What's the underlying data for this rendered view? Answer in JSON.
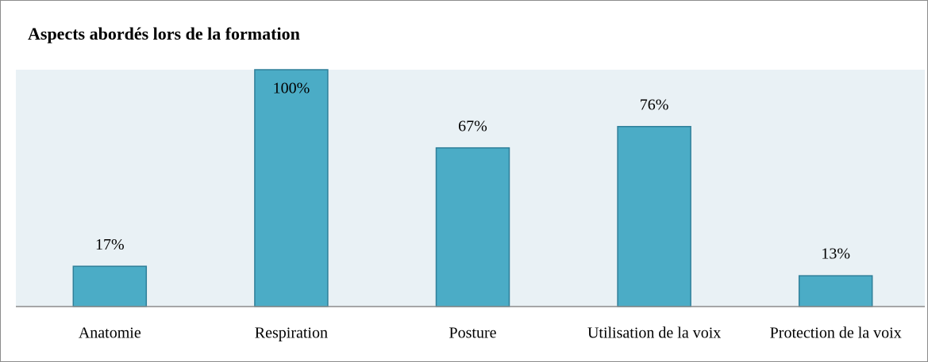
{
  "chart_data": {
    "type": "bar",
    "title": "Aspects abordés lors de la formation",
    "categories": [
      "Anatomie",
      "Respiration",
      "Posture",
      "Utilisation de la voix",
      "Protection de la voix"
    ],
    "values": [
      17,
      100,
      67,
      76,
      13
    ],
    "value_labels": [
      "17%",
      "100%",
      "67%",
      "76%",
      "13%"
    ],
    "color": "#4bacc6",
    "ylim": [
      0,
      100
    ]
  }
}
